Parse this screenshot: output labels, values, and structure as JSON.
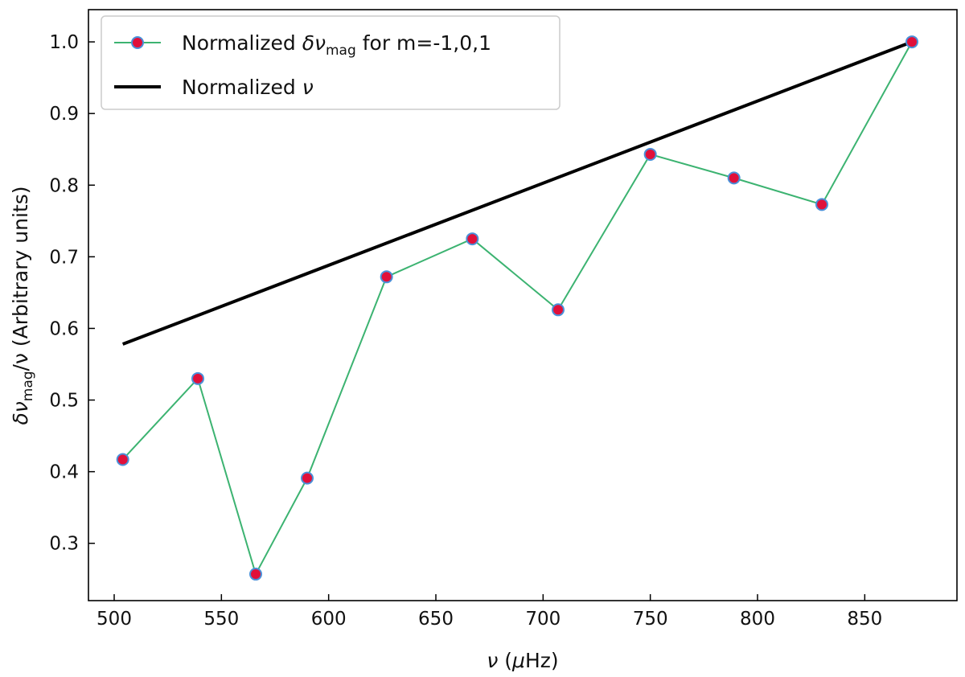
{
  "chart_data": {
    "type": "line",
    "title": "",
    "xlabel": {
      "symbol": "ν",
      "rest": " (",
      "unit_mu": "μ",
      "unit_rest": "Hz)"
    },
    "ylabel": {
      "delta": "δν",
      "sub": "mag",
      "rest": "/ν (Arbitrary units)"
    },
    "xlim": [
      488,
      893
    ],
    "ylim": [
      0.22,
      1.045
    ],
    "xticks": [
      500,
      550,
      600,
      650,
      700,
      750,
      800,
      850
    ],
    "yticks": [
      0.3,
      0.4,
      0.5,
      0.6,
      0.7,
      0.8,
      0.9,
      1.0
    ],
    "xtick_labels": [
      "500",
      "550",
      "600",
      "650",
      "700",
      "750",
      "800",
      "850"
    ],
    "ytick_labels": [
      "0.3",
      "0.4",
      "0.5",
      "0.6",
      "0.7",
      "0.8",
      "0.9",
      "1.0"
    ],
    "legend_position": "top-left",
    "series": [
      {
        "name": "Normalized δν_mag for m=-1,0,1",
        "legend": {
          "pre": "Normalized ",
          "delta": "δν",
          "sub": "mag",
          "post": " for m=-1,0,1"
        },
        "style": "line-markers",
        "line_color": "#3cb371",
        "marker_face": "#e0103a",
        "marker_edge": "#4a90d9",
        "x": [
          504,
          539,
          566,
          590,
          627,
          667,
          707,
          750,
          789,
          830,
          872
        ],
        "y": [
          0.417,
          0.53,
          0.257,
          0.391,
          0.672,
          0.725,
          0.626,
          0.843,
          0.81,
          0.773,
          1.0
        ]
      },
      {
        "name": "Normalized ν",
        "legend": {
          "pre": "Normalized ",
          "delta": "ν",
          "sub": "",
          "post": ""
        },
        "style": "line",
        "line_color": "#000000",
        "x": [
          504,
          872
        ],
        "y": [
          0.578,
          1.0
        ]
      }
    ]
  }
}
